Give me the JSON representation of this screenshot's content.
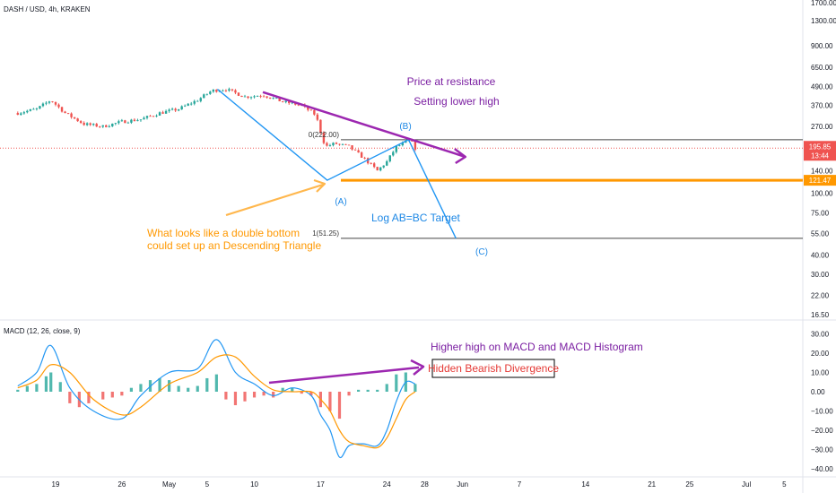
{
  "header": {
    "title": "DASH / USD, 4h, KRAKEN"
  },
  "price_axis": {
    "ticks": [
      "1700.00",
      "1300.00",
      "900.00",
      "650.00",
      "490.00",
      "370.00",
      "270.00",
      "140.00",
      "100.00",
      "75.00",
      "55.00",
      "40.00",
      "30.00",
      "22.00",
      "16.50"
    ],
    "tick_values": [
      1700,
      1300,
      900,
      650,
      490,
      370,
      270,
      140,
      100,
      75,
      55,
      40,
      30,
      22,
      16.5
    ],
    "scale": "log",
    "current_price": "195.85",
    "countdown": "13:44",
    "level_label": "121.47"
  },
  "macd_pane": {
    "label": "MACD (12, 26, close, 9)",
    "ticks": [
      "30.00",
      "20.00",
      "10.00",
      "0.00",
      "−10.00",
      "−20.00",
      "−30.00",
      "−40.00"
    ],
    "tick_values": [
      30,
      20,
      10,
      0,
      -10,
      -20,
      -30,
      -40
    ]
  },
  "time_axis": {
    "ticks": [
      "19",
      "26",
      "May",
      "5",
      "10",
      "17",
      "24",
      "28",
      "Jun",
      "7",
      "14",
      "21",
      "25",
      "Jul",
      "5"
    ],
    "tick_days": [
      19,
      26,
      31,
      35,
      40,
      47,
      54,
      58,
      62,
      68,
      75,
      82,
      86,
      92,
      96
    ],
    "unit": "days since Apr 1"
  },
  "annotations": {
    "price_resistance": "Price at resistance",
    "lower_high": "Setting lower high",
    "double_bottom_1": "What looks like a double bottom",
    "double_bottom_2": "could set up an Descending Triangle",
    "target": "Log AB=BC Target",
    "point_a": "(A)",
    "point_b": "(B)",
    "point_c": "(C)",
    "fib_0": "0(222.00)",
    "fib_1": "1(51.25)",
    "macd_higher_high": "Higher high on MACD and MACD Histogram",
    "divergence": "Hidden Bearish Divergence"
  },
  "colors": {
    "up": "#26a69a",
    "down": "#ef5350",
    "orange": "#ff9800",
    "purple": "#9c27b0",
    "blue": "#2196f3",
    "macd_line": "#2196f3",
    "signal_line": "#ff9800",
    "divergence_text": "#e53935",
    "price_label_bg": "#ef5350"
  },
  "chart_data": {
    "type": "candlestick",
    "title": "DASH / USD, 4h, KRAKEN",
    "yscale": "log",
    "ylim": [
      16.5,
      1700
    ],
    "key_levels": {
      "resistance_B": 222.0,
      "support_A": 121.47,
      "target_C": 51.25,
      "current": 195.85
    },
    "price_path": [
      {
        "day": 15.0,
        "price": 330
      },
      {
        "day": 17.0,
        "price": 350
      },
      {
        "day": 18.5,
        "price": 400
      },
      {
        "day": 20.0,
        "price": 330
      },
      {
        "day": 22.0,
        "price": 280
      },
      {
        "day": 24.0,
        "price": 270
      },
      {
        "day": 26.0,
        "price": 290
      },
      {
        "day": 28.0,
        "price": 300
      },
      {
        "day": 30.0,
        "price": 330
      },
      {
        "day": 32.0,
        "price": 350
      },
      {
        "day": 34.0,
        "price": 400
      },
      {
        "day": 35.5,
        "price": 460
      },
      {
        "day": 37.0,
        "price": 470
      },
      {
        "day": 39.0,
        "price": 420
      },
      {
        "day": 41.0,
        "price": 430
      },
      {
        "day": 43.0,
        "price": 390
      },
      {
        "day": 45.0,
        "price": 370
      },
      {
        "day": 46.5,
        "price": 320
      },
      {
        "day": 47.0,
        "price": 250
      },
      {
        "day": 47.5,
        "price": 200
      },
      {
        "day": 48.5,
        "price": 210
      },
      {
        "day": 50.0,
        "price": 200
      },
      {
        "day": 51.5,
        "price": 170
      },
      {
        "day": 53.0,
        "price": 140
      },
      {
        "day": 54.0,
        "price": 160
      },
      {
        "day": 55.0,
        "price": 200
      },
      {
        "day": 56.5,
        "price": 220
      },
      {
        "day": 57.0,
        "price": 195.85
      }
    ],
    "macd": [
      {
        "day": 15.0,
        "macd": 3,
        "signal": 2
      },
      {
        "day": 17.0,
        "macd": 10,
        "signal": 6
      },
      {
        "day": 18.5,
        "macd": 24,
        "signal": 14
      },
      {
        "day": 20.5,
        "macd": 2,
        "signal": 10
      },
      {
        "day": 23.0,
        "macd": -10,
        "signal": -4
      },
      {
        "day": 26.0,
        "macd": -14,
        "signal": -12
      },
      {
        "day": 28.0,
        "macd": -2,
        "signal": -8
      },
      {
        "day": 31.0,
        "macd": 10,
        "signal": 4
      },
      {
        "day": 34.0,
        "macd": 12,
        "signal": 10
      },
      {
        "day": 36.0,
        "macd": 27,
        "signal": 18
      },
      {
        "day": 38.0,
        "macd": 10,
        "signal": 18
      },
      {
        "day": 40.0,
        "macd": 4,
        "signal": 8
      },
      {
        "day": 42.0,
        "macd": -2,
        "signal": 1
      },
      {
        "day": 44.0,
        "macd": 2,
        "signal": 0
      },
      {
        "day": 46.0,
        "macd": -2,
        "signal": 0
      },
      {
        "day": 47.0,
        "macd": -12,
        "signal": -4
      },
      {
        "day": 48.0,
        "macd": -20,
        "signal": -10
      },
      {
        "day": 49.0,
        "macd": -34,
        "signal": -20
      },
      {
        "day": 50.0,
        "macd": -28,
        "signal": -26
      },
      {
        "day": 51.5,
        "macd": -27,
        "signal": -28
      },
      {
        "day": 53.0,
        "macd": -28,
        "signal": -29
      },
      {
        "day": 54.0,
        "macd": -20,
        "signal": -24
      },
      {
        "day": 55.0,
        "macd": -5,
        "signal": -14
      },
      {
        "day": 56.0,
        "macd": 5,
        "signal": -4
      },
      {
        "day": 57.0,
        "macd": 4,
        "signal": 0
      }
    ],
    "histogram": [
      {
        "day": 15.0,
        "value": 1
      },
      {
        "day": 16.0,
        "value": 3
      },
      {
        "day": 17.0,
        "value": 4
      },
      {
        "day": 18.0,
        "value": 8
      },
      {
        "day": 18.5,
        "value": 10
      },
      {
        "day": 19.5,
        "value": 5
      },
      {
        "day": 20.5,
        "value": -6
      },
      {
        "day": 21.5,
        "value": -8
      },
      {
        "day": 22.5,
        "value": -6
      },
      {
        "day": 24.0,
        "value": -4
      },
      {
        "day": 25.0,
        "value": -3
      },
      {
        "day": 26.0,
        "value": -2
      },
      {
        "day": 27.0,
        "value": 2
      },
      {
        "day": 28.0,
        "value": 4
      },
      {
        "day": 29.0,
        "value": 6
      },
      {
        "day": 30.0,
        "value": 7
      },
      {
        "day": 31.0,
        "value": 6
      },
      {
        "day": 32.0,
        "value": 3
      },
      {
        "day": 33.0,
        "value": 2
      },
      {
        "day": 34.0,
        "value": 3
      },
      {
        "day": 35.0,
        "value": 7
      },
      {
        "day": 36.0,
        "value": 9
      },
      {
        "day": 37.0,
        "value": -4
      },
      {
        "day": 38.0,
        "value": -7
      },
      {
        "day": 39.0,
        "value": -5
      },
      {
        "day": 40.0,
        "value": -3
      },
      {
        "day": 41.0,
        "value": -2
      },
      {
        "day": 42.0,
        "value": -3
      },
      {
        "day": 43.0,
        "value": 2
      },
      {
        "day": 44.0,
        "value": 2
      },
      {
        "day": 45.0,
        "value": -1
      },
      {
        "day": 46.0,
        "value": -2
      },
      {
        "day": 47.0,
        "value": -8
      },
      {
        "day": 48.0,
        "value": -10
      },
      {
        "day": 49.0,
        "value": -14
      },
      {
        "day": 50.0,
        "value": -2
      },
      {
        "day": 51.0,
        "value": 1
      },
      {
        "day": 52.0,
        "value": 1
      },
      {
        "day": 53.0,
        "value": 1
      },
      {
        "day": 54.0,
        "value": 4
      },
      {
        "day": 55.0,
        "value": 9
      },
      {
        "day": 56.0,
        "value": 10
      },
      {
        "day": 57.0,
        "value": 4
      }
    ]
  }
}
